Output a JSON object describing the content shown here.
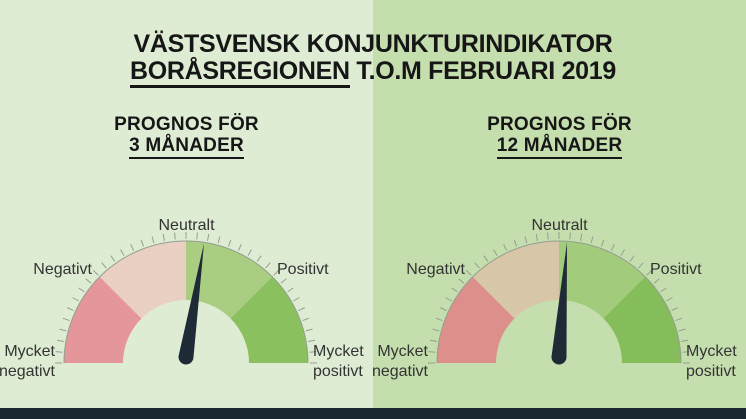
{
  "title": {
    "line1": "VÄSTSVENSK KONJUNKTURINDIKATOR",
    "line2_underlined": "BORÅSREGIONEN",
    "line2_rest": " T.O.M FEBRUARI 2019"
  },
  "colors": {
    "background_left": "#dfecd4",
    "background_right": "#c5deae",
    "title_text": "#161616",
    "label_text": "#333333",
    "needle": "#1e2a36",
    "tick": "#949e91",
    "bottom_bar": "#1b2731"
  },
  "panels": [
    {
      "header_line1": "PROGNOS FÖR",
      "header_line2": "3 MÅNADER",
      "labels": {
        "top": "Neutralt",
        "upper_left": "Negativt",
        "upper_right": "Positivt",
        "lower_left_line1": "Mycket",
        "lower_left_line2": "negativt",
        "lower_right_line1": "Mycket",
        "lower_right_line2": "positivt"
      },
      "gauge": {
        "needle_angle_deg": 9,
        "segments": [
          {
            "label": "Mycket negativt",
            "start_deg": 180,
            "end_deg": 135,
            "color": "#e4969a"
          },
          {
            "label": "Negativt",
            "start_deg": 135,
            "end_deg": 90,
            "color": "#e9d0c3"
          },
          {
            "label": "Positivt",
            "start_deg": 90,
            "end_deg": 45,
            "color": "#a9ce82"
          },
          {
            "label": "Mycket positivt",
            "start_deg": 45,
            "end_deg": 0,
            "color": "#8ac05e"
          }
        ]
      }
    },
    {
      "header_line1": "PROGNOS FÖR",
      "header_line2": "12 MÅNADER",
      "labels": {
        "top": "Neutralt",
        "upper_left": "Negativt",
        "upper_right": "Positivt",
        "lower_left_line1": "Mycket",
        "lower_left_line2": "negativt",
        "lower_right_line1": "Mycket",
        "lower_right_line2": "positivt"
      },
      "gauge": {
        "needle_angle_deg": 4,
        "segments": [
          {
            "label": "Mycket negativt",
            "start_deg": 180,
            "end_deg": 135,
            "color": "#dd8f8c"
          },
          {
            "label": "Negativt",
            "start_deg": 135,
            "end_deg": 90,
            "color": "#d7c6a7"
          },
          {
            "label": "Positivt",
            "start_deg": 90,
            "end_deg": 45,
            "color": "#a3cb7c"
          },
          {
            "label": "Mycket positivt",
            "start_deg": 45,
            "end_deg": 0,
            "color": "#86bd5b"
          }
        ]
      }
    }
  ],
  "chart_data": [
    {
      "type": "gauge",
      "title": "PROGNOS FÖR 3 MÅNADER",
      "scale": {
        "min_deg": 0,
        "max_deg": 180,
        "tick_interval_deg": 5
      },
      "axis_labels": [
        "Mycket negativt",
        "Negativt",
        "Neutralt",
        "Positivt",
        "Mycket positivt"
      ],
      "segments": [
        {
          "label": "Mycket negativt",
          "from_deg": 0,
          "to_deg": 45
        },
        {
          "label": "Negativt",
          "from_deg": 45,
          "to_deg": 90
        },
        {
          "label": "Positivt",
          "from_deg": 90,
          "to_deg": 135
        },
        {
          "label": "Mycket positivt",
          "from_deg": 135,
          "to_deg": 180
        }
      ],
      "needle_position_deg_from_left": 99,
      "needle_position_normalized": 0.55
    },
    {
      "type": "gauge",
      "title": "PROGNOS FÖR 12 MÅNADER",
      "scale": {
        "min_deg": 0,
        "max_deg": 180,
        "tick_interval_deg": 5
      },
      "axis_labels": [
        "Mycket negativt",
        "Negativt",
        "Neutralt",
        "Positivt",
        "Mycket positivt"
      ],
      "segments": [
        {
          "label": "Mycket negativt",
          "from_deg": 0,
          "to_deg": 45
        },
        {
          "label": "Negativt",
          "from_deg": 45,
          "to_deg": 90
        },
        {
          "label": "Positivt",
          "from_deg": 90,
          "to_deg": 135
        },
        {
          "label": "Mycket positivt",
          "from_deg": 135,
          "to_deg": 180
        }
      ],
      "needle_position_deg_from_left": 94,
      "needle_position_normalized": 0.52
    }
  ]
}
